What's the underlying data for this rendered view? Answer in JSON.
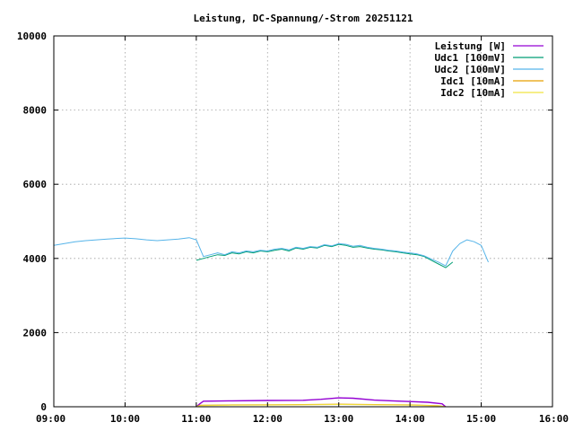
{
  "chart_data": {
    "type": "line",
    "title": "Leistung, DC-Spannung/-Strom 20251121",
    "xlabel": "",
    "ylabel": "",
    "xlim": [
      9,
      16
    ],
    "ylim": [
      0,
      10000
    ],
    "x_ticks": [
      {
        "value": 9,
        "label": "09:00"
      },
      {
        "value": 10,
        "label": "10:00"
      },
      {
        "value": 11,
        "label": "11:00"
      },
      {
        "value": 12,
        "label": "12:00"
      },
      {
        "value": 13,
        "label": "13:00"
      },
      {
        "value": 14,
        "label": "14:00"
      },
      {
        "value": 15,
        "label": "15:00"
      },
      {
        "value": 16,
        "label": "16:00"
      }
    ],
    "y_ticks": [
      {
        "value": 0,
        "label": "0"
      },
      {
        "value": 2000,
        "label": "2000"
      },
      {
        "value": 4000,
        "label": "4000"
      },
      {
        "value": 6000,
        "label": "6000"
      },
      {
        "value": 8000,
        "label": "8000"
      },
      {
        "value": 10000,
        "label": "10000"
      }
    ],
    "grid": true,
    "legend_position": "top-right",
    "series": [
      {
        "name": "Leistung [W]",
        "color": "#9400d3",
        "x": [
          11.0,
          11.05,
          11.1,
          11.5,
          12.0,
          12.5,
          12.75,
          13.0,
          13.2,
          13.5,
          13.75,
          14.0,
          14.25,
          14.45,
          14.5
        ],
        "y": [
          0,
          80,
          150,
          160,
          170,
          175,
          200,
          240,
          230,
          180,
          160,
          140,
          120,
          80,
          0
        ]
      },
      {
        "name": "Udc1 [100mV]",
        "color": "#009e73",
        "x": [
          11.0,
          11.1,
          11.2,
          11.3,
          11.4,
          11.5,
          11.6,
          11.7,
          11.8,
          11.9,
          12.0,
          12.1,
          12.2,
          12.3,
          12.4,
          12.5,
          12.6,
          12.7,
          12.8,
          12.9,
          13.0,
          13.1,
          13.2,
          13.3,
          13.4,
          13.5,
          13.6,
          13.7,
          13.8,
          13.9,
          14.0,
          14.1,
          14.2,
          14.3,
          14.4,
          14.5,
          14.6
        ],
        "y": [
          3950,
          4000,
          4050,
          4100,
          4080,
          4150,
          4120,
          4180,
          4150,
          4200,
          4180,
          4220,
          4250,
          4200,
          4280,
          4250,
          4300,
          4280,
          4350,
          4320,
          4380,
          4350,
          4300,
          4320,
          4280,
          4250,
          4230,
          4200,
          4180,
          4150,
          4120,
          4100,
          4050,
          3950,
          3850,
          3750,
          3900
        ]
      },
      {
        "name": "Udc2 [100mV]",
        "color": "#56b4e9",
        "x": [
          9.0,
          9.15,
          9.3,
          9.45,
          9.6,
          9.75,
          9.9,
          10.0,
          10.15,
          10.3,
          10.45,
          10.6,
          10.75,
          10.9,
          11.0,
          11.1,
          11.2,
          11.3,
          11.4,
          11.5,
          11.6,
          11.7,
          11.8,
          11.9,
          12.0,
          12.1,
          12.2,
          12.3,
          12.4,
          12.5,
          12.6,
          12.7,
          12.8,
          12.9,
          13.0,
          13.1,
          13.2,
          13.3,
          13.4,
          13.5,
          13.6,
          13.7,
          13.8,
          13.9,
          14.0,
          14.1,
          14.2,
          14.3,
          14.4,
          14.5,
          14.6,
          14.7,
          14.8,
          14.9,
          15.0,
          15.1
        ],
        "y": [
          4350,
          4400,
          4450,
          4480,
          4500,
          4520,
          4540,
          4550,
          4530,
          4500,
          4480,
          4500,
          4520,
          4560,
          4500,
          4050,
          4100,
          4150,
          4100,
          4180,
          4150,
          4200,
          4180,
          4220,
          4200,
          4250,
          4270,
          4230,
          4300,
          4270,
          4320,
          4300,
          4370,
          4340,
          4400,
          4380,
          4330,
          4350,
          4300,
          4270,
          4250,
          4220,
          4200,
          4170,
          4150,
          4120,
          4070,
          3980,
          3900,
          3800,
          4200,
          4400,
          4500,
          4450,
          4350,
          3900
        ]
      },
      {
        "name": "Idc1 [10mA]",
        "color": "#e69f00",
        "x": [
          11.0,
          11.05,
          11.5,
          12.0,
          12.5,
          13.0,
          13.5,
          14.0,
          14.4,
          14.5
        ],
        "y": [
          0,
          40,
          50,
          55,
          60,
          70,
          60,
          50,
          30,
          0
        ]
      },
      {
        "name": "Idc2 [10mA]",
        "color": "#f0e442",
        "x": [
          11.0,
          11.05,
          11.5,
          12.0,
          12.5,
          13.0,
          13.5,
          14.0,
          14.4,
          14.5
        ],
        "y": [
          0,
          30,
          40,
          45,
          50,
          60,
          50,
          40,
          25,
          0
        ]
      }
    ]
  }
}
